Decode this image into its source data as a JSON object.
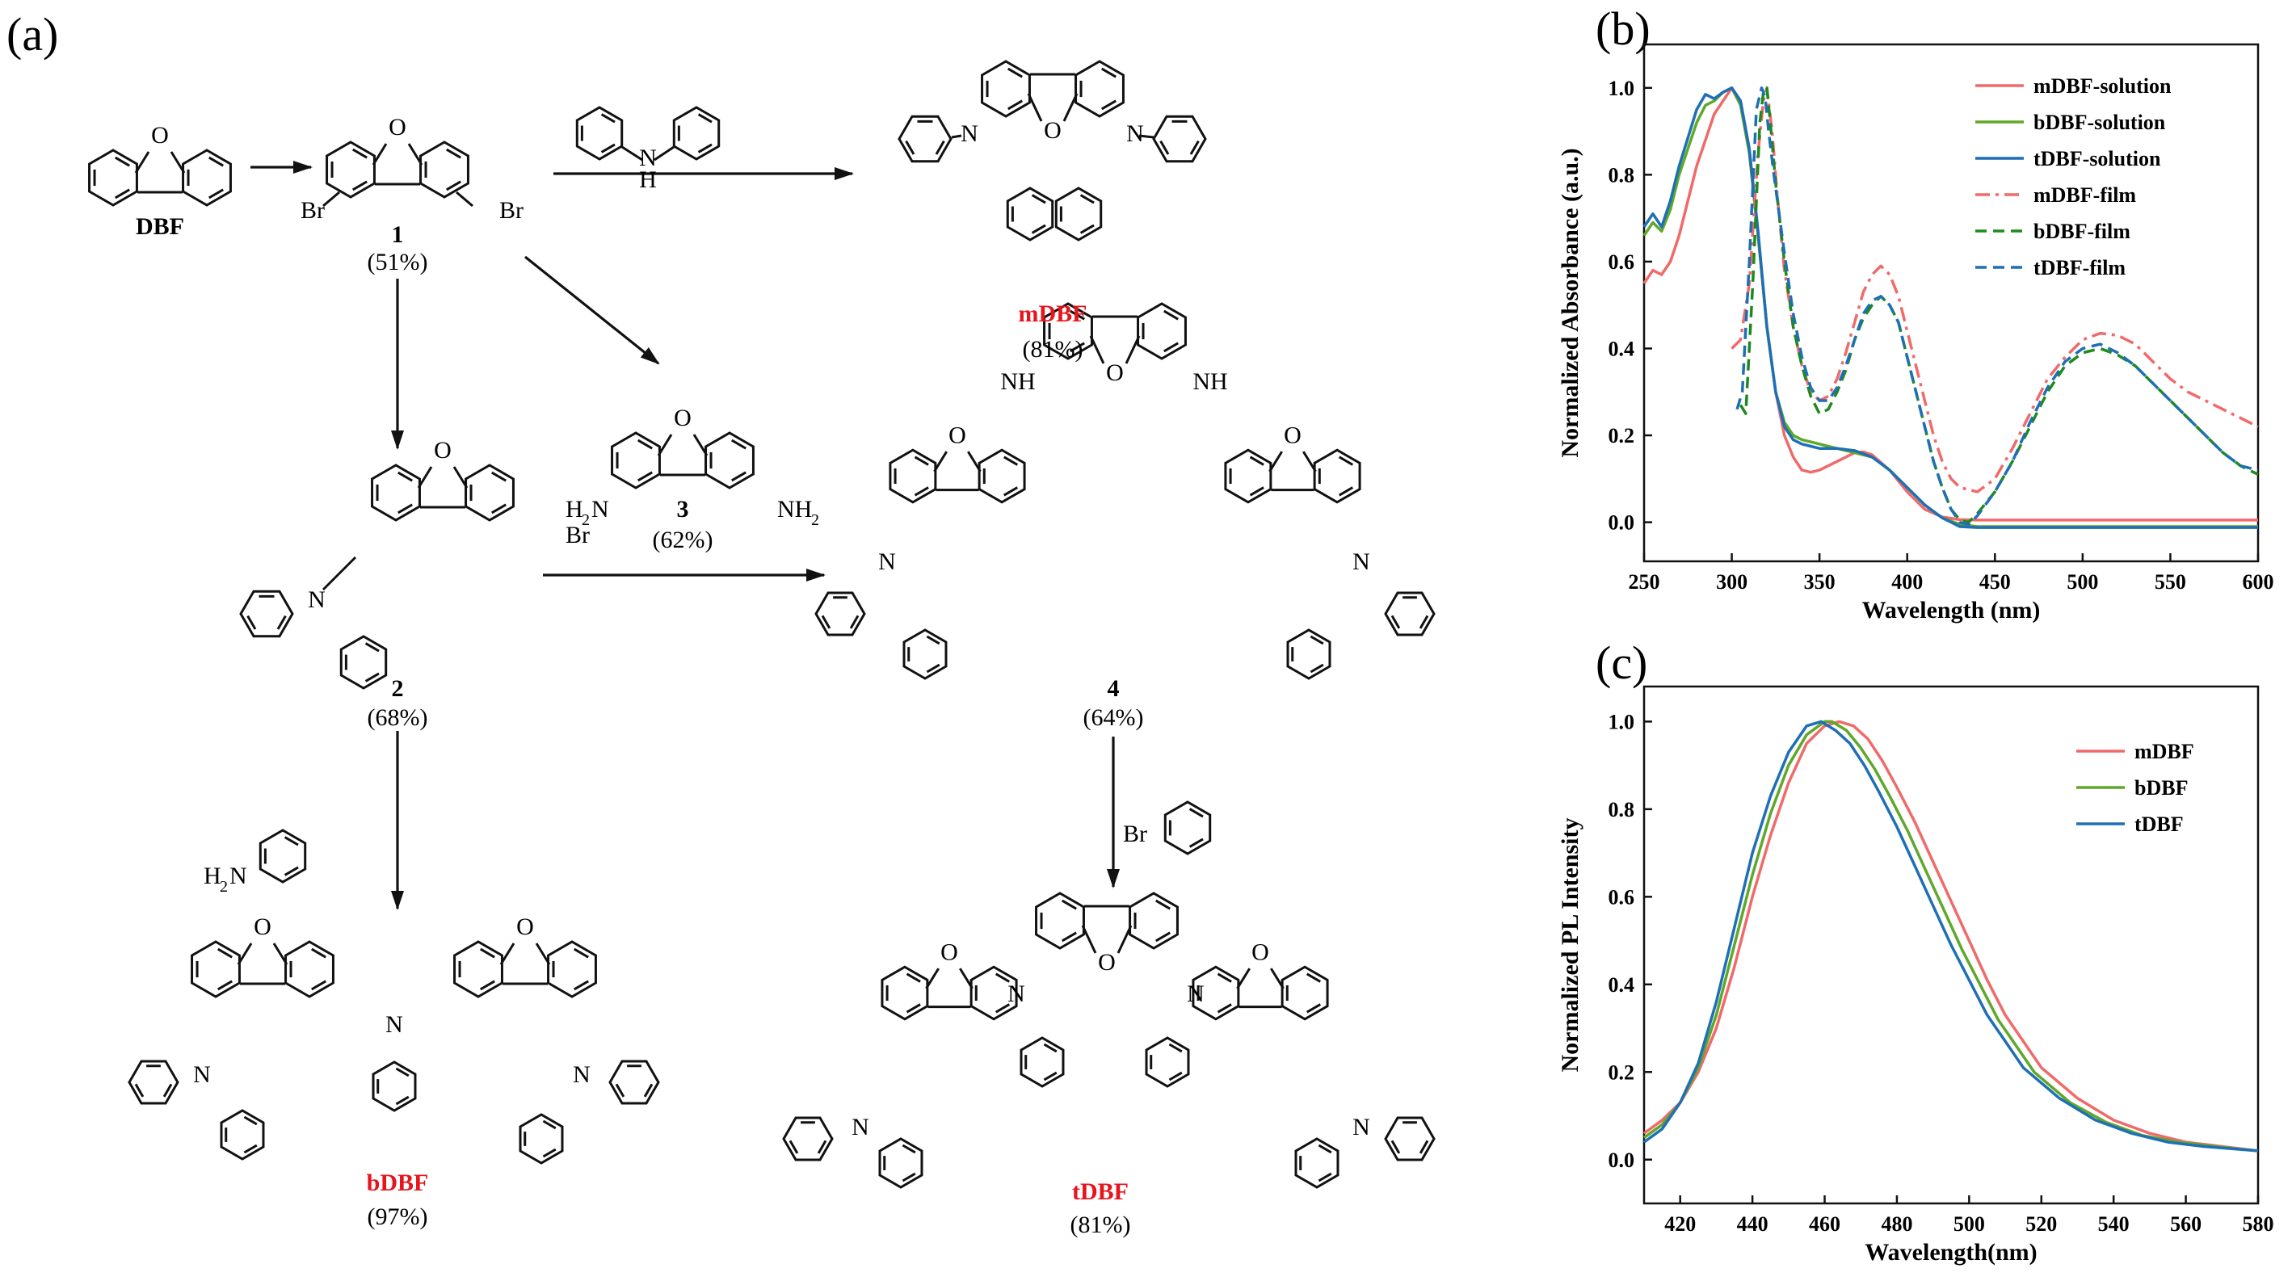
{
  "figure": {
    "panel_a_label": "(a)",
    "panel_b_label": "(b)",
    "panel_c_label": "(c)"
  },
  "scheme": {
    "dbf": {
      "label": "DBF"
    },
    "cpd1": {
      "number": "1",
      "yield": "(51%)",
      "substituent": "Br"
    },
    "cpd2": {
      "number": "2",
      "yield": "(68%)",
      "substituent": "Br"
    },
    "cpd3": {
      "number": "3",
      "yield": "(62%)",
      "amine": "NH",
      "amine_sub": "2",
      "amine_left": "H",
      "amine_left_sub": "2",
      "amine_left_n": "N"
    },
    "cpd4": {
      "number": "4",
      "yield": "(64%)",
      "nh": "NH"
    },
    "mdbf": {
      "name": "mDBF",
      "yield": "(81%)"
    },
    "bdbf": {
      "name": "bDBF",
      "yield": "(97%)"
    },
    "tdbf": {
      "name": "tDBF",
      "yield": "(81%)"
    },
    "reagent_amine": {
      "n": "N",
      "h": "H"
    },
    "reagent_aniline": {
      "h": "H",
      "sub": "2",
      "n": "N"
    },
    "reagent_bromide": {
      "br": "Br"
    },
    "atoms": {
      "o": "O",
      "n": "N"
    }
  },
  "chart_data": [
    {
      "type": "line",
      "panel": "(b)",
      "xlabel": "Wavelength (nm)",
      "ylabel": "Normalized Absorbance (a.u.)",
      "xlim": [
        250,
        600
      ],
      "ylim": [
        -0.09,
        1.1
      ],
      "xticks": [
        "250",
        "300",
        "350",
        "400",
        "450",
        "500",
        "550",
        "600"
      ],
      "yticks": [
        "0.0",
        "0.2",
        "0.4",
        "0.6",
        "0.8",
        "1.0"
      ],
      "legend_position": "top-right",
      "series": [
        {
          "name": "mDBF-solution",
          "color": "#f06a6a",
          "style": "solid",
          "x": [
            250,
            255,
            260,
            265,
            270,
            280,
            290,
            300,
            305,
            310,
            315,
            320,
            325,
            330,
            335,
            340,
            345,
            350,
            360,
            370,
            375,
            380,
            390,
            400,
            410,
            420,
            430,
            440,
            460,
            500,
            550,
            600
          ],
          "y": [
            0.55,
            0.58,
            0.57,
            0.6,
            0.66,
            0.82,
            0.94,
            1.0,
            0.97,
            0.85,
            0.66,
            0.45,
            0.3,
            0.2,
            0.15,
            0.12,
            0.115,
            0.12,
            0.14,
            0.16,
            0.162,
            0.155,
            0.12,
            0.07,
            0.03,
            0.012,
            0.006,
            0.005,
            0.005,
            0.005,
            0.005,
            0.005
          ]
        },
        {
          "name": "bDBF-solution",
          "color": "#5fa82a",
          "style": "solid",
          "x": [
            250,
            255,
            260,
            265,
            270,
            280,
            285,
            290,
            295,
            300,
            305,
            310,
            315,
            320,
            325,
            330,
            335,
            340,
            345,
            350,
            360,
            370,
            380,
            390,
            400,
            410,
            420,
            430,
            440,
            460,
            500,
            550,
            600
          ],
          "y": [
            0.66,
            0.69,
            0.67,
            0.72,
            0.8,
            0.92,
            0.96,
            0.97,
            0.99,
            1.0,
            0.96,
            0.85,
            0.66,
            0.45,
            0.3,
            0.23,
            0.2,
            0.19,
            0.185,
            0.18,
            0.17,
            0.16,
            0.15,
            0.12,
            0.08,
            0.04,
            0.01,
            -0.005,
            -0.01,
            -0.01,
            -0.01,
            -0.01,
            -0.01
          ]
        },
        {
          "name": "tDBF-solution",
          "color": "#1f6fb5",
          "style": "solid",
          "x": [
            250,
            255,
            260,
            265,
            270,
            280,
            285,
            290,
            295,
            300,
            305,
            310,
            315,
            320,
            325,
            330,
            335,
            340,
            345,
            350,
            360,
            370,
            380,
            390,
            400,
            410,
            420,
            430,
            440,
            460,
            500,
            550,
            600
          ],
          "y": [
            0.68,
            0.71,
            0.68,
            0.74,
            0.82,
            0.95,
            0.985,
            0.975,
            0.99,
            1.0,
            0.97,
            0.86,
            0.67,
            0.45,
            0.3,
            0.22,
            0.19,
            0.18,
            0.175,
            0.17,
            0.17,
            0.165,
            0.15,
            0.12,
            0.08,
            0.04,
            0.01,
            -0.01,
            -0.012,
            -0.012,
            -0.012,
            -0.012,
            -0.012
          ]
        },
        {
          "name": "mDBF-film",
          "color": "#f06a6a",
          "style": "dashdot",
          "x": [
            300,
            305,
            310,
            315,
            318,
            320,
            323,
            326,
            330,
            335,
            340,
            345,
            350,
            355,
            360,
            365,
            370,
            375,
            380,
            385,
            390,
            395,
            400,
            405,
            410,
            415,
            420,
            425,
            430,
            440,
            450,
            460,
            470,
            480,
            490,
            500,
            510,
            520,
            530,
            540,
            550,
            560,
            570,
            580,
            590,
            600
          ],
          "y": [
            0.4,
            0.42,
            0.55,
            0.85,
            0.97,
            1.0,
            0.9,
            0.75,
            0.58,
            0.45,
            0.36,
            0.3,
            0.28,
            0.29,
            0.33,
            0.39,
            0.46,
            0.53,
            0.57,
            0.59,
            0.57,
            0.52,
            0.44,
            0.36,
            0.28,
            0.2,
            0.14,
            0.1,
            0.08,
            0.07,
            0.1,
            0.17,
            0.25,
            0.33,
            0.38,
            0.42,
            0.435,
            0.43,
            0.41,
            0.37,
            0.33,
            0.3,
            0.28,
            0.26,
            0.24,
            0.22
          ]
        },
        {
          "name": "bDBF-film",
          "color": "#1e8a1e",
          "style": "dash",
          "x": [
            305,
            308,
            312,
            316,
            318,
            320,
            322,
            325,
            330,
            335,
            340,
            345,
            350,
            355,
            360,
            365,
            370,
            375,
            380,
            385,
            390,
            395,
            400,
            405,
            410,
            415,
            420,
            425,
            430,
            435,
            440,
            450,
            460,
            470,
            480,
            490,
            500,
            510,
            520,
            530,
            540,
            550,
            560,
            570,
            580,
            590,
            600
          ],
          "y": [
            0.27,
            0.25,
            0.55,
            0.92,
            0.99,
            1.0,
            0.92,
            0.78,
            0.6,
            0.45,
            0.36,
            0.29,
            0.25,
            0.26,
            0.3,
            0.35,
            0.42,
            0.47,
            0.5,
            0.52,
            0.5,
            0.46,
            0.38,
            0.3,
            0.22,
            0.14,
            0.08,
            0.03,
            0.005,
            0.0,
            0.02,
            0.07,
            0.14,
            0.22,
            0.3,
            0.36,
            0.39,
            0.4,
            0.385,
            0.36,
            0.32,
            0.28,
            0.24,
            0.2,
            0.16,
            0.13,
            0.11
          ]
        },
        {
          "name": "tDBF-film",
          "color": "#1f6fb5",
          "style": "dash",
          "x": [
            303,
            306,
            310,
            314,
            317,
            319,
            321,
            324,
            330,
            335,
            340,
            345,
            350,
            355,
            360,
            365,
            370,
            375,
            380,
            385,
            390,
            395,
            400,
            405,
            410,
            415,
            420,
            425,
            430,
            435,
            440,
            450,
            460,
            470,
            480,
            490,
            500,
            510,
            520,
            530,
            540,
            550,
            560,
            570,
            580,
            590,
            600
          ],
          "y": [
            0.26,
            0.3,
            0.6,
            0.95,
            1.0,
            0.98,
            0.9,
            0.8,
            0.62,
            0.48,
            0.38,
            0.31,
            0.28,
            0.28,
            0.31,
            0.36,
            0.42,
            0.48,
            0.51,
            0.52,
            0.5,
            0.46,
            0.38,
            0.3,
            0.22,
            0.14,
            0.08,
            0.03,
            0.0,
            -0.005,
            0.015,
            0.07,
            0.14,
            0.23,
            0.31,
            0.37,
            0.4,
            0.41,
            0.39,
            0.36,
            0.32,
            0.28,
            0.24,
            0.2,
            0.16,
            0.13,
            0.12
          ]
        }
      ]
    },
    {
      "type": "line",
      "panel": "(c)",
      "xlabel": "Wavelength(nm)",
      "ylabel": "Normalized PL Intensity",
      "xlim": [
        410,
        580
      ],
      "ylim": [
        -0.1,
        1.08
      ],
      "xticks": [
        "420",
        "440",
        "460",
        "480",
        "500",
        "520",
        "540",
        "560",
        "580"
      ],
      "yticks": [
        "0.0",
        "0.2",
        "0.4",
        "0.6",
        "0.8",
        "1.0"
      ],
      "legend_position": "top-right",
      "series": [
        {
          "name": "mDBF",
          "color": "#f06a6a",
          "style": "solid",
          "x": [
            410,
            415,
            420,
            425,
            430,
            435,
            440,
            445,
            450,
            455,
            460,
            464,
            468,
            472,
            476,
            480,
            485,
            490,
            495,
            500,
            505,
            510,
            515,
            520,
            530,
            540,
            550,
            560,
            570,
            580
          ],
          "y": [
            0.06,
            0.09,
            0.13,
            0.2,
            0.3,
            0.44,
            0.6,
            0.74,
            0.86,
            0.95,
            0.99,
            1.0,
            0.99,
            0.96,
            0.91,
            0.85,
            0.77,
            0.68,
            0.59,
            0.5,
            0.41,
            0.33,
            0.27,
            0.21,
            0.14,
            0.09,
            0.06,
            0.04,
            0.03,
            0.02
          ]
        },
        {
          "name": "bDBF",
          "color": "#5fa82a",
          "style": "solid",
          "x": [
            410,
            415,
            420,
            425,
            430,
            435,
            440,
            445,
            450,
            455,
            460,
            462,
            466,
            470,
            474,
            478,
            483,
            488,
            493,
            498,
            503,
            508,
            513,
            518,
            528,
            538,
            548,
            558,
            568,
            580
          ],
          "y": [
            0.05,
            0.08,
            0.13,
            0.21,
            0.33,
            0.49,
            0.65,
            0.79,
            0.9,
            0.97,
            1.0,
            1.0,
            0.98,
            0.94,
            0.89,
            0.83,
            0.75,
            0.66,
            0.57,
            0.48,
            0.4,
            0.32,
            0.26,
            0.2,
            0.13,
            0.085,
            0.055,
            0.04,
            0.03,
            0.02
          ]
        },
        {
          "name": "tDBF",
          "color": "#1f6fb5",
          "style": "solid",
          "x": [
            410,
            415,
            420,
            425,
            430,
            435,
            440,
            445,
            450,
            455,
            459,
            463,
            467,
            471,
            475,
            480,
            485,
            490,
            495,
            500,
            505,
            510,
            515,
            525,
            535,
            545,
            555,
            565,
            580
          ],
          "y": [
            0.04,
            0.07,
            0.13,
            0.22,
            0.36,
            0.53,
            0.7,
            0.83,
            0.93,
            0.99,
            1.0,
            0.98,
            0.95,
            0.9,
            0.84,
            0.76,
            0.67,
            0.58,
            0.49,
            0.41,
            0.33,
            0.27,
            0.21,
            0.14,
            0.09,
            0.06,
            0.04,
            0.03,
            0.02
          ]
        }
      ]
    }
  ]
}
